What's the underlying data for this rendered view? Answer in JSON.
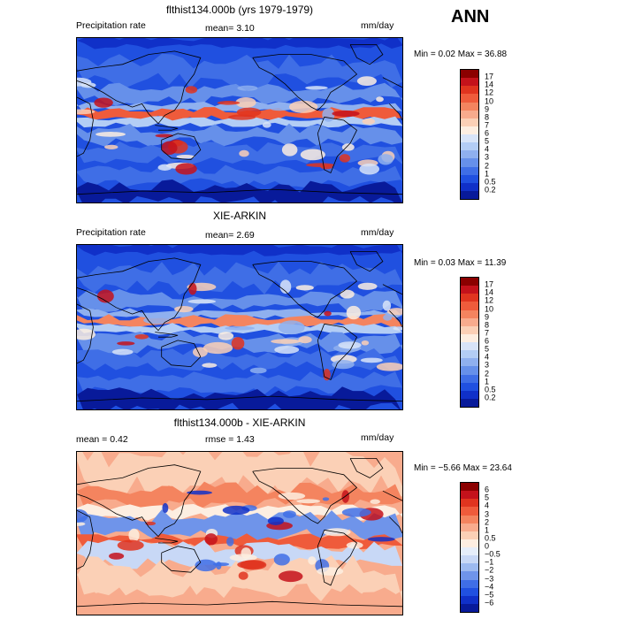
{
  "season": "ANN",
  "panels": [
    {
      "title": "flthist134.000b (yrs 1979-1979)",
      "left_label": "Precipitation rate",
      "mid_label": "mean=   3.10",
      "unit": "mm/day",
      "minmax": "Min =   0.02 Max =  36.88",
      "levels": [
        "17",
        "14",
        "12",
        "10",
        "9",
        "8",
        "7",
        "6",
        "5",
        "4",
        "3",
        "2",
        "1",
        "0.5",
        "0.2"
      ],
      "colors": [
        "#8b0000",
        "#c4121b",
        "#e0341f",
        "#ef5b3b",
        "#f4845f",
        "#f8ab8d",
        "#fbd0b6",
        "#fdeee1",
        "#d8e4f8",
        "#b3cdf5",
        "#8fb0ef",
        "#6690ea",
        "#3f6ee6",
        "#2050e0",
        "#1030c8",
        "#081a9a"
      ]
    },
    {
      "title": "XIE-ARKIN",
      "left_label": "Precipitation rate",
      "mid_label": "mean=   2.69",
      "unit": "mm/day",
      "minmax": "Min =   0.03 Max =  11.39",
      "levels": [
        "17",
        "14",
        "12",
        "10",
        "9",
        "8",
        "7",
        "6",
        "5",
        "4",
        "3",
        "2",
        "1",
        "0.5",
        "0.2"
      ],
      "colors": [
        "#8b0000",
        "#c4121b",
        "#e0341f",
        "#ef5b3b",
        "#f4845f",
        "#f8ab8d",
        "#fbd0b6",
        "#fdeee1",
        "#d8e4f8",
        "#b3cdf5",
        "#8fb0ef",
        "#6690ea",
        "#3f6ee6",
        "#2050e0",
        "#1030c8",
        "#081a9a"
      ]
    },
    {
      "title": "flthist134.000b - XIE-ARKIN",
      "left_label": "mean =   0.42",
      "mid_label": "rmse =   1.43",
      "unit": "mm/day",
      "minmax": "Min =  −5.66 Max =  23.64",
      "levels": [
        "6",
        "5",
        "4",
        "3",
        "2",
        "1",
        "0.5",
        "0",
        "−0.5",
        "−1",
        "−2",
        "−3",
        "−4",
        "−5",
        "−6"
      ],
      "colors": [
        "#8b0000",
        "#c4121b",
        "#e0341f",
        "#ef5b3b",
        "#f4845f",
        "#f8ab8d",
        "#fbd0b6",
        "#fdeee1",
        "#e6eefa",
        "#c8d8f6",
        "#9dbaf0",
        "#6f94ea",
        "#3f6ee6",
        "#2050e0",
        "#1030c8",
        "#081a9a"
      ]
    }
  ]
}
